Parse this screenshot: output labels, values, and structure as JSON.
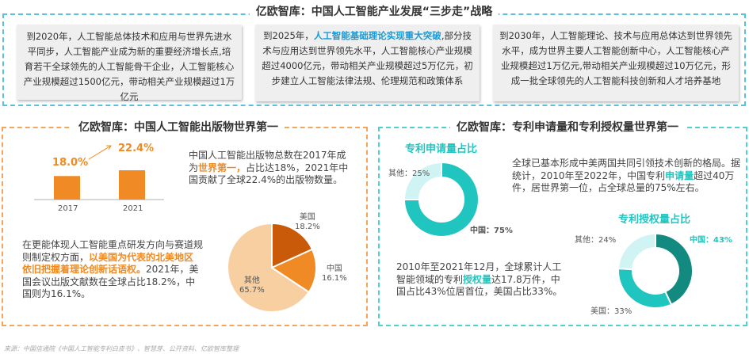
{
  "top": {
    "title": "亿欧智库：中国人工智能产业发展“三步走”战略",
    "cards": [
      {
        "before": "到2020年，人工智能总体技术和应用与世界先进水平同步，人工智能产业成为新的重要经济增长点,培育若干全球领先的人工智能骨干企业，人工智能核心产业规模超过1500亿元，带动相关产业规模超过1万亿元",
        "highlight": "",
        "after": ""
      },
      {
        "before": "到2025年，",
        "highlight": "人工智能基础理论实现重大突破",
        "after": ",部分技术与应用达到世界领先水平，人工智能核心产业规模超过4000亿元，带动相关产业规模超过5万亿元，初步建立人工智能法律法规、伦理规范和政策体系"
      },
      {
        "before": "到2030年，人工智能理论、技术与应用总体达到世界领先水平，成为世界主要人工智能创新中心，人工智能核心产业规模超过1万亿元,带动相关产业规模超过10万亿元，形成一批全球领先的人工智能科技创新和人才培养基地",
        "highlight": "",
        "after": ""
      }
    ]
  },
  "left": {
    "title": "亿欧智库：中国人工智能出版物世界第一",
    "text1": {
      "a": "中国人工智能出版物总数在2017年成为",
      "hl": "世界第一，",
      "b": "占比达18%，2021年中国贡献了全球22.4%的出版物数量。"
    },
    "text2": {
      "a": "在更能体现人工智能重点研发方向与赛道规则制定权方面，",
      "hl": "以美国为代表的北美地区依旧把握着理论创新话语权。",
      "b": "2021年，美国会议出版文献数在全球占比18.2%，中国则为16.1%。"
    }
  },
  "right": {
    "title": "亿欧智库：专利申请量和专利授权量世界第一",
    "text1": {
      "a": "全球已基本形成中美两国共同引领技术创新的格局。据统计，2010年至2022年，中国专利",
      "hl": "申请量",
      "b": "超过40万件，居世界第一位，占全球总量的75%左右。"
    },
    "text2": {
      "a": "2010年至2021年12月，全球累计人工智能领域的专利",
      "hl": "授权量",
      "b": "达17.8万件，中国占比43%位居首位，美国占比33%。"
    }
  },
  "source": "来源：中国信通院《中国人工智能专利白皮书》、智慧芽、公开资料、亿欧智库整理",
  "colors": {
    "orange": "#f08a24",
    "blue": "#1a9bd7",
    "teal": "#20c5c0",
    "dark_teal": "#138a80",
    "light_teal": "#d0f3f3"
  },
  "chart_data": [
    {
      "type": "bar",
      "categories": [
        "2017",
        "2021"
      ],
      "values": [
        18.0,
        22.4
      ],
      "data_labels": [
        "18.0%",
        "22.4%"
      ],
      "color": "#f08a24"
    },
    {
      "type": "pie",
      "labels": [
        "美国",
        "中国",
        "其他"
      ],
      "values": [
        18.2,
        16.1,
        65.7
      ],
      "data_labels": [
        "18.2%",
        "16.1%",
        "65.7%"
      ],
      "colors": [
        "#c85a0a",
        "#f08a24",
        "#f8cfa0"
      ]
    },
    {
      "type": "pie",
      "donut": true,
      "title": "专利申请量占比",
      "labels": [
        "中国",
        "其他"
      ],
      "values": [
        75,
        25
      ],
      "data_labels": [
        "中国：75%",
        "其他：25%"
      ],
      "colors": [
        "#20c5c0",
        "#d0f3f3"
      ]
    },
    {
      "type": "pie",
      "donut": true,
      "title": "专利授权量占比",
      "labels": [
        "中国",
        "美国",
        "其他"
      ],
      "values": [
        43,
        33,
        24
      ],
      "data_labels": [
        "中国：43%",
        "美国：33%",
        "其他：24%"
      ],
      "colors": [
        "#138a80",
        "#20c5c0",
        "#d0f3f3"
      ]
    }
  ]
}
